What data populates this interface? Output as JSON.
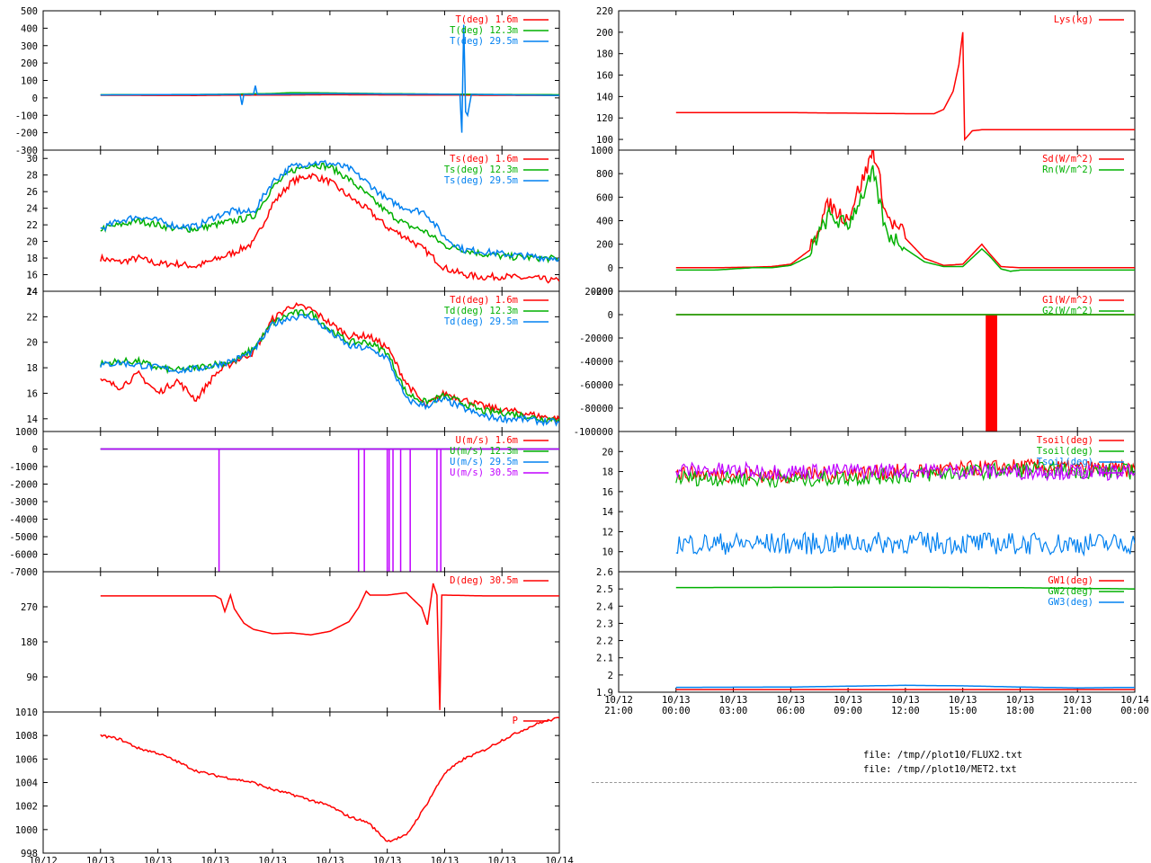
{
  "colors": {
    "red": "#ff0000",
    "green": "#00b000",
    "blue": "#0080f0",
    "purple": "#c000ff",
    "axis": "#000000",
    "grid_rule": "#999999"
  },
  "time_axis": {
    "start_hour": -3,
    "end_hour": 24,
    "ticks": [
      {
        "hour": -3,
        "date": "10/12",
        "time": "21:00"
      },
      {
        "hour": 0,
        "date": "10/13",
        "time": "00:00"
      },
      {
        "hour": 3,
        "date": "10/13",
        "time": "03:00"
      },
      {
        "hour": 6,
        "date": "10/13",
        "time": "06:00"
      },
      {
        "hour": 9,
        "date": "10/13",
        "time": "09:00"
      },
      {
        "hour": 12,
        "date": "10/13",
        "time": "12:00"
      },
      {
        "hour": 15,
        "date": "10/13",
        "time": "15:00"
      },
      {
        "hour": 18,
        "date": "10/13",
        "time": "18:00"
      },
      {
        "hour": 21,
        "date": "10/13",
        "time": "21:00"
      },
      {
        "hour": 24,
        "date": "10/14",
        "time": "00:00"
      }
    ]
  },
  "chart_data": [
    {
      "id": "temp",
      "type": "line",
      "column": "left",
      "ylim": [
        -300,
        500
      ],
      "yticks": [
        -300,
        -200,
        -100,
        0,
        100,
        200,
        300,
        400,
        500
      ],
      "series": [
        {
          "name": "T(deg)  1.6m",
          "color": "red",
          "x": [
            0,
            5,
            6,
            9,
            12,
            15,
            18,
            20,
            24
          ],
          "y": [
            15,
            14,
            15,
            16,
            18,
            17,
            16,
            15,
            14
          ]
        },
        {
          "name": "T(deg) 12.3m",
          "color": "green",
          "x": [
            0,
            6,
            9,
            10,
            12,
            15,
            20,
            24
          ],
          "y": [
            18,
            20,
            25,
            30,
            28,
            24,
            20,
            18
          ]
        },
        {
          "name": "T(deg) 29.5m",
          "color": "blue",
          "x": [
            0,
            7.3,
            7.4,
            7.5,
            8.0,
            8.1,
            8.2,
            12,
            18.8,
            18.9,
            19.0,
            19.1,
            19.2,
            19.4,
            24
          ],
          "y": [
            17,
            20,
            -40,
            20,
            20,
            70,
            20,
            24,
            20,
            -200,
            420,
            -80,
            -100,
            20,
            14
          ]
        }
      ]
    },
    {
      "id": "ts",
      "type": "line",
      "column": "left",
      "ylim": [
        14,
        31
      ],
      "yticks": [
        14,
        16,
        18,
        20,
        22,
        24,
        26,
        28,
        30
      ],
      "series": [
        {
          "name": "Ts(deg)  1.6m",
          "color": "red",
          "x": [
            0,
            1,
            2,
            3,
            4,
            5,
            6,
            7,
            8,
            9,
            10,
            11,
            12,
            13,
            14,
            15,
            16,
            17,
            18,
            19,
            20,
            21,
            22,
            23,
            24
          ],
          "y": [
            18,
            17.5,
            18,
            17.3,
            17.3,
            17,
            17.8,
            18.7,
            19.8,
            24.5,
            27.2,
            28,
            27.2,
            25.4,
            23.8,
            21.7,
            20.5,
            18.9,
            16.8,
            16,
            15.7,
            15.8,
            15.6,
            15.5,
            15.2
          ]
        },
        {
          "name": "Ts(deg) 12.3m",
          "color": "green",
          "x": [
            0,
            1,
            2,
            3,
            4,
            5,
            6,
            7,
            8,
            9,
            10,
            11,
            12,
            13,
            14,
            15,
            16,
            17,
            18,
            19,
            20,
            21,
            22,
            23,
            24
          ],
          "y": [
            21.5,
            22,
            22.5,
            22,
            21.5,
            21.5,
            22,
            22.5,
            23,
            26.5,
            28.5,
            29.3,
            29,
            27.5,
            25.5,
            23.5,
            22,
            21.2,
            19.5,
            19,
            18.5,
            18.2,
            18.1,
            18,
            17.9
          ]
        },
        {
          "name": "Ts(deg) 29.5m",
          "color": "blue",
          "x": [
            0,
            1,
            2,
            3,
            4,
            5,
            6,
            7,
            8,
            9,
            10,
            11,
            12,
            13,
            14,
            15,
            16,
            17,
            18,
            19,
            20,
            21,
            22,
            23,
            24
          ],
          "y": [
            21.5,
            22.5,
            23,
            22.5,
            21.8,
            21.8,
            23,
            23.7,
            23.5,
            27.2,
            29,
            29.5,
            29.4,
            28.8,
            27,
            25,
            24,
            23.5,
            20.5,
            19,
            18.8,
            18.5,
            18.3,
            18.1,
            18
          ]
        }
      ]
    },
    {
      "id": "td",
      "type": "line",
      "column": "left",
      "ylim": [
        13,
        24
      ],
      "yticks": [
        14,
        16,
        18,
        20,
        22,
        24
      ],
      "series": [
        {
          "name": "Td(deg)  1.6m",
          "color": "red",
          "x": [
            0,
            1,
            2,
            3,
            4,
            5,
            6,
            7,
            8,
            9,
            10,
            11,
            12,
            13,
            14,
            15,
            16,
            17,
            18,
            19,
            20,
            21,
            22,
            23,
            24
          ],
          "y": [
            17,
            16.5,
            17.5,
            16,
            17,
            15.5,
            17.5,
            18.5,
            19.2,
            21.8,
            22.9,
            22.6,
            21.5,
            20.5,
            20.5,
            19.6,
            16.8,
            15,
            16,
            15.5,
            15,
            14.7,
            14.5,
            14.2,
            14
          ]
        },
        {
          "name": "Td(deg) 12.3m",
          "color": "green",
          "x": [
            0,
            1,
            2,
            3,
            4,
            5,
            6,
            7,
            8,
            9,
            10,
            11,
            12,
            13,
            14,
            15,
            16,
            17,
            18,
            19,
            20,
            21,
            22,
            23,
            24
          ],
          "y": [
            18.3,
            18.5,
            18.5,
            18,
            17.8,
            18,
            18.3,
            18.5,
            19.5,
            21.5,
            22.3,
            22.3,
            21,
            20,
            20,
            19.2,
            16,
            15.3,
            15.8,
            15.2,
            14.6,
            14.5,
            14.3,
            14,
            14
          ]
        },
        {
          "name": "Td(deg) 29.5m",
          "color": "blue",
          "x": [
            0,
            1,
            2,
            3,
            4,
            5,
            6,
            7,
            8,
            9,
            10,
            11,
            12,
            13,
            14,
            15,
            16,
            17,
            18,
            19,
            20,
            21,
            22,
            23,
            24
          ],
          "y": [
            18.2,
            18.4,
            18.2,
            18,
            17.8,
            17.9,
            18.2,
            18.6,
            19.3,
            21.4,
            22,
            22,
            20.8,
            19.7,
            19.5,
            18.8,
            15.5,
            15,
            15.5,
            14.8,
            14.2,
            14,
            14,
            13.8,
            13.7
          ]
        }
      ]
    },
    {
      "id": "wind",
      "type": "line",
      "column": "left",
      "ylim": [
        -7000,
        1000
      ],
      "yticks": [
        -7000,
        -6000,
        -5000,
        -4000,
        -3000,
        -2000,
        -1000,
        0,
        1000
      ],
      "series": [
        {
          "name": "U(m/s)  1.6m",
          "color": "red",
          "x": [
            0,
            24
          ],
          "y": [
            0,
            0
          ]
        },
        {
          "name": "U(m/s) 12.3m",
          "color": "green",
          "x": [
            0,
            24
          ],
          "y": [
            0,
            0
          ]
        },
        {
          "name": "U(m/s) 29.5m",
          "color": "blue",
          "x": [
            0,
            24
          ],
          "y": [
            0,
            0
          ]
        },
        {
          "name": "U(m/s) 30.5m",
          "color": "purple",
          "x": [
            0,
            24
          ],
          "y": [
            0,
            0
          ],
          "spikes": [
            6.2,
            13.5,
            13.8,
            15.0,
            15.1,
            15.3,
            15.7,
            16.2,
            17.6,
            17.8
          ]
        }
      ]
    },
    {
      "id": "dir",
      "type": "line",
      "column": "left",
      "ylim": [
        0,
        360
      ],
      "yticks": [
        90,
        180,
        270
      ],
      "series": [
        {
          "name": "D(deg)  30.5m",
          "color": "red",
          "x": [
            0,
            6,
            6.3,
            6.5,
            6.8,
            7.0,
            7.5,
            8,
            9,
            10,
            11,
            12,
            13,
            13.5,
            13.9,
            14.1,
            15,
            16,
            16.8,
            17.1,
            17.4,
            17.6,
            17.75,
            17.85,
            18,
            20,
            24
          ],
          "y": [
            298,
            298,
            290,
            258,
            300,
            265,
            228,
            212,
            201,
            203,
            198,
            207,
            232,
            268,
            310,
            300,
            300,
            306,
            268,
            224,
            330,
            300,
            5,
            300,
            300,
            298,
            298
          ]
        }
      ]
    },
    {
      "id": "pressure",
      "type": "line",
      "column": "left",
      "ylim": [
        998,
        1010
      ],
      "yticks": [
        998,
        1000,
        1002,
        1004,
        1006,
        1008,
        1010
      ],
      "series": [
        {
          "name": "P",
          "color": "red",
          "x": [
            0,
            1,
            2,
            3,
            4,
            5,
            6,
            7,
            8,
            9,
            10,
            11,
            12,
            13,
            14,
            15,
            16,
            17,
            18,
            19,
            20,
            21,
            22,
            23,
            24
          ],
          "y": [
            1008,
            1007.7,
            1006.9,
            1006.5,
            1005.8,
            1005,
            1004.6,
            1004.3,
            1004,
            1003.4,
            1003,
            1002.5,
            1002,
            1001.1,
            1000.6,
            999,
            999.5,
            1002,
            1004.8,
            1006,
            1006.7,
            1007.6,
            1008.4,
            1009.1,
            1009.5
          ]
        }
      ]
    },
    {
      "id": "lys",
      "type": "line",
      "column": "right",
      "ylim": [
        90,
        220
      ],
      "yticks": [
        100,
        120,
        140,
        160,
        180,
        200,
        220
      ],
      "series": [
        {
          "name": "Lys(kg)",
          "color": "red",
          "x": [
            0,
            6,
            9,
            12,
            13.5,
            14,
            14.5,
            14.8,
            15,
            15.1,
            15.5,
            16,
            18,
            24
          ],
          "y": [
            125,
            125,
            124.5,
            124,
            124,
            128,
            145,
            170,
            200,
            100,
            108,
            109,
            109,
            109
          ]
        }
      ]
    },
    {
      "id": "radiation",
      "type": "line",
      "column": "right",
      "ylim": [
        -200,
        1000
      ],
      "yticks": [
        -200,
        0,
        200,
        400,
        600,
        800,
        1000
      ],
      "series": [
        {
          "name": "Sd(W/m^2)",
          "color": "red",
          "x": [
            0,
            2,
            4,
            5,
            6,
            7,
            8,
            8.5,
            9,
            9.5,
            10,
            10.3,
            10.6,
            11,
            11.5,
            12,
            13,
            14,
            15,
            16,
            16.4,
            17,
            18,
            24
          ],
          "y": [
            0,
            0,
            5,
            10,
            30,
            150,
            500,
            420,
            380,
            600,
            800,
            980,
            750,
            400,
            300,
            250,
            80,
            20,
            30,
            200,
            120,
            10,
            0,
            0
          ]
        },
        {
          "name": "Rn(W/m^2)",
          "color": "green",
          "x": [
            0,
            2,
            4,
            5,
            6,
            7,
            8,
            8.5,
            9,
            9.5,
            10,
            10.3,
            10.6,
            11,
            11.5,
            12,
            13,
            14,
            15,
            16,
            16.4,
            17,
            17.5,
            18,
            24
          ],
          "y": [
            -20,
            -20,
            0,
            0,
            20,
            100,
            400,
            350,
            320,
            500,
            650,
            760,
            550,
            250,
            200,
            160,
            50,
            10,
            10,
            160,
            100,
            -10,
            -30,
            -20,
            -20
          ]
        }
      ]
    },
    {
      "id": "groundflux",
      "type": "line",
      "column": "right",
      "ylim": [
        -100000,
        20000
      ],
      "yticks": [
        -100000,
        -80000,
        -60000,
        -40000,
        -20000,
        0,
        20000
      ],
      "series": [
        {
          "name": "G1(W/m^2)",
          "color": "red",
          "x": [
            0,
            24
          ],
          "y": [
            0,
            0
          ],
          "band": [
            16.2,
            16.8
          ]
        },
        {
          "name": "G2(W/m^2)",
          "color": "green",
          "x": [
            0,
            24
          ],
          "y": [
            0,
            0
          ]
        }
      ]
    },
    {
      "id": "soil",
      "type": "line",
      "column": "right",
      "ylim": [
        8,
        22
      ],
      "yticks": [
        10,
        12,
        14,
        16,
        18,
        20
      ],
      "series": [
        {
          "name": "Tsoil(deg)",
          "color": "red",
          "x": [
            0,
            6,
            12,
            18,
            24
          ],
          "y": [
            17.8,
            17.6,
            18,
            18.5,
            18.2
          ]
        },
        {
          "name": "Tsoil(deg)",
          "color": "green",
          "x": [
            0,
            6,
            12,
            18,
            24
          ],
          "y": [
            17.4,
            17.2,
            17.6,
            18.2,
            18
          ]
        },
        {
          "name": "Tsoil(deg)",
          "color": "blue",
          "x": [
            0,
            6,
            12,
            18,
            24
          ],
          "y": [
            10.8,
            10.8,
            10.9,
            10.8,
            10.8
          ]
        },
        {
          "name": "Tsoil(deg)",
          "color": "purple",
          "x": [
            0,
            6,
            12,
            18,
            24
          ],
          "y": [
            18.2,
            18,
            18.1,
            18,
            17.9
          ]
        }
      ]
    },
    {
      "id": "gw",
      "type": "line",
      "column": "right",
      "ylim": [
        1.9,
        2.6
      ],
      "yticks": [
        1.9,
        2.0,
        2.1,
        2.2,
        2.3,
        2.4,
        2.5,
        2.6
      ],
      "series": [
        {
          "name": "GW1(deg)",
          "color": "red",
          "x": [
            0,
            24
          ],
          "y": [
            1.915,
            1.915
          ]
        },
        {
          "name": "GW2(deg)",
          "color": "green",
          "x": [
            0,
            12,
            18,
            24
          ],
          "y": [
            2.508,
            2.51,
            2.507,
            2.5
          ]
        },
        {
          "name": "GW3(deg)",
          "color": "blue",
          "x": [
            0,
            6,
            9,
            12,
            15,
            18,
            21,
            24
          ],
          "y": [
            1.928,
            1.93,
            1.935,
            1.94,
            1.937,
            1.93,
            1.925,
            1.928
          ]
        }
      ]
    }
  ],
  "footer": {
    "line1": "file: /tmp//plot10/FLUX2.txt",
    "line2": "file: /tmp//plot10/MET2.txt"
  }
}
